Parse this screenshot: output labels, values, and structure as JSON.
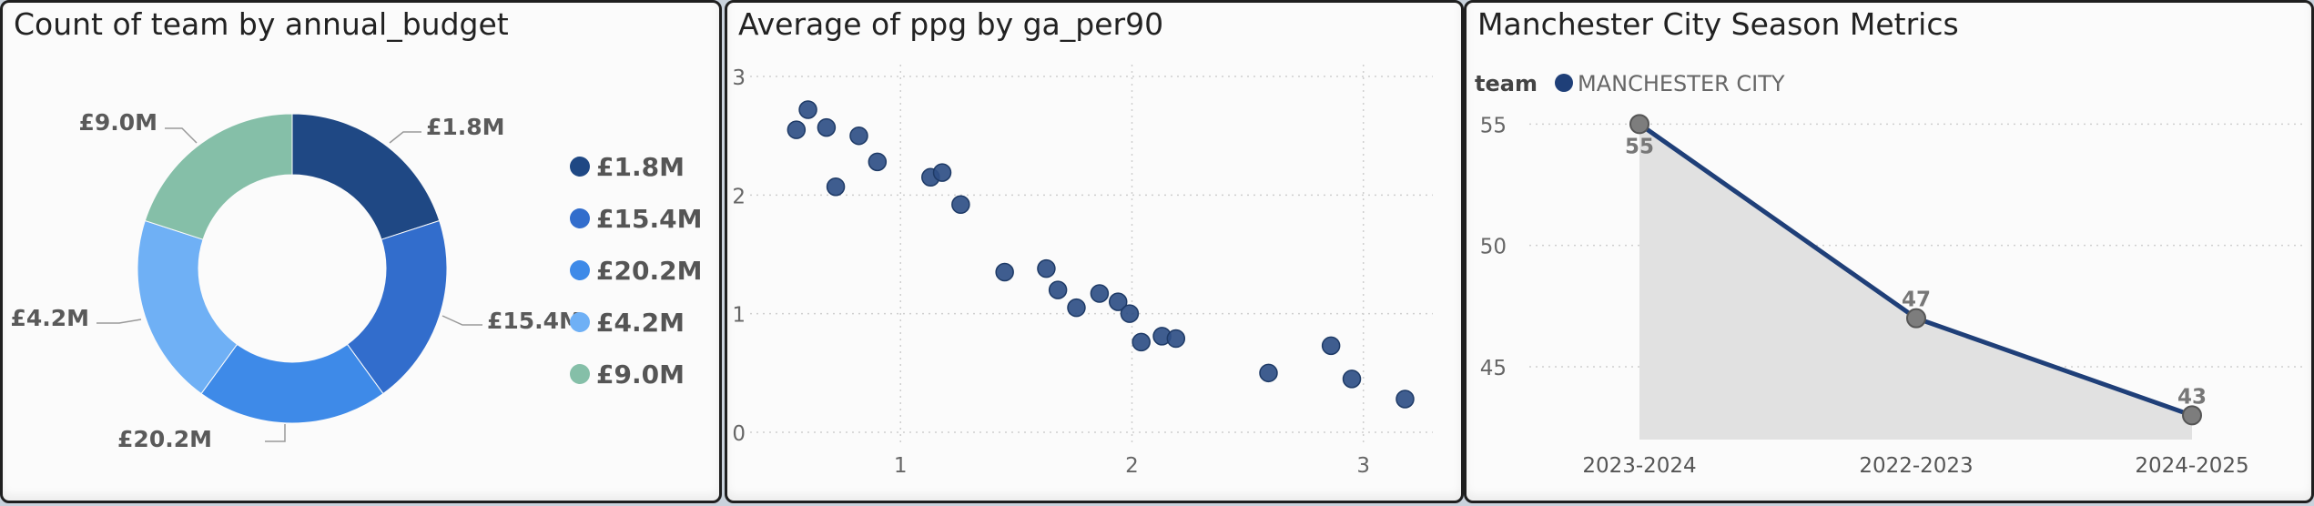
{
  "chart_data": [
    {
      "type": "pie",
      "variant": "donut",
      "title": "Count of team by annual_budget",
      "categories": [
        "£1.8M",
        "£15.4M",
        "£20.2M",
        "£4.2M",
        "£9.0M"
      ],
      "values": [
        1,
        1,
        1,
        1,
        1
      ],
      "colors": [
        "#1f4884",
        "#326dcc",
        "#3e8ae8",
        "#6fb0f5",
        "#85bfa8"
      ],
      "legend": "right"
    },
    {
      "type": "scatter",
      "title": "Average of ppg by ga_per90",
      "xlabel": "",
      "ylabel": "",
      "xlim": [
        0.35,
        3.3
      ],
      "ylim": [
        -0.1,
        3.1
      ],
      "xticks": [
        "1",
        "2",
        "3"
      ],
      "yticks": [
        "0",
        "1",
        "2",
        "3"
      ],
      "grid": true,
      "color": "#2f4f86",
      "points": [
        [
          0.55,
          2.55
        ],
        [
          0.6,
          2.72
        ],
        [
          0.68,
          2.57
        ],
        [
          0.72,
          2.07
        ],
        [
          0.82,
          2.5
        ],
        [
          0.9,
          2.28
        ],
        [
          1.13,
          2.15
        ],
        [
          1.18,
          2.19
        ],
        [
          1.26,
          1.92
        ],
        [
          1.45,
          1.35
        ],
        [
          1.63,
          1.38
        ],
        [
          1.68,
          1.2
        ],
        [
          1.76,
          1.05
        ],
        [
          1.86,
          1.17
        ],
        [
          1.94,
          1.1
        ],
        [
          1.99,
          1.0
        ],
        [
          2.04,
          0.76
        ],
        [
          2.13,
          0.81
        ],
        [
          2.19,
          0.79
        ],
        [
          2.59,
          0.5
        ],
        [
          2.86,
          0.73
        ],
        [
          2.95,
          0.45
        ],
        [
          3.18,
          0.28
        ]
      ]
    },
    {
      "type": "area",
      "title": "Manchester City Season Metrics",
      "legend_title": "team",
      "series": [
        {
          "name": "MANCHESTER CITY",
          "values": [
            55,
            47,
            43
          ]
        }
      ],
      "categories": [
        "2023-2024",
        "2022-2023",
        "2024-2025"
      ],
      "ylim": [
        42,
        57
      ],
      "yticks": [
        "45",
        "50",
        "55"
      ],
      "data_labels": [
        "55",
        "47",
        "43"
      ],
      "line_color": "#1f3f78",
      "fill_color": "#e1e1e1",
      "marker_color": "#7d7d7d"
    }
  ]
}
